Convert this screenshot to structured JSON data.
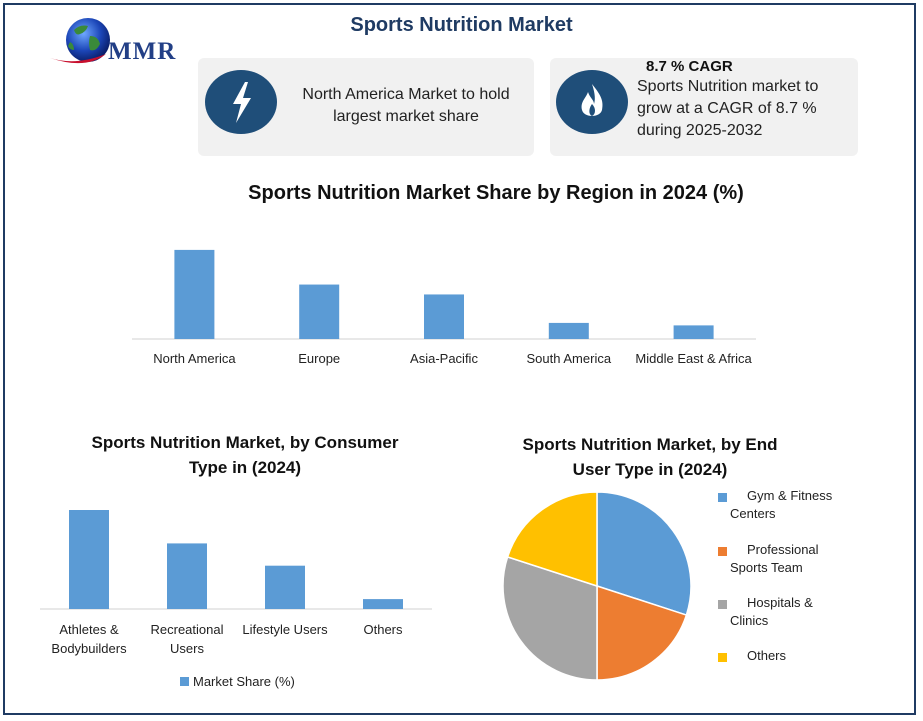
{
  "header": {
    "title": "Sports Nutrition Market",
    "logo_text": "MMR"
  },
  "cards": {
    "region": {
      "text_line1": "North America Market to hold",
      "text_line2": "largest market share"
    },
    "cagr": {
      "heading": "8.7 % CAGR",
      "line1": "Sports Nutrition market to",
      "line2": "grow at a CAGR of 8.7 %",
      "line3": "during 2025-2032"
    }
  },
  "colors": {
    "bar": "#5b9bd5",
    "accent": "#1f4e79",
    "title": "#1f3b63"
  },
  "chart_data": [
    {
      "type": "bar",
      "title": "Sports Nutrition Market Share by Region in 2024 (%)",
      "categories": [
        "North America",
        "Europe",
        "Asia-Pacific",
        "South America",
        "Middle East & Africa"
      ],
      "values": [
        36,
        22,
        18,
        6.5,
        5.5
      ],
      "color": "#5b9bd5",
      "grid": false
    },
    {
      "type": "bar",
      "title_line1": "Sports Nutrition Market, by Consumer",
      "title_line2": "Type in (2024)",
      "categories": [
        {
          "line1": "Athletes &",
          "line2": "Bodybuilders"
        },
        {
          "line1": "Recreational",
          "line2": "Users"
        },
        {
          "line1": "Lifestyle Users",
          "line2": ""
        },
        {
          "line1": "Others",
          "line2": ""
        }
      ],
      "values": [
        40,
        26.5,
        17.5,
        4
      ],
      "series": [
        {
          "name": "Market Share (%)"
        }
      ],
      "color": "#5b9bd5",
      "legend": "bottom",
      "grid": false
    },
    {
      "type": "pie",
      "title_line1": "Sports Nutrition Market, by End",
      "title_line2": "User Type in (2024)",
      "legend": "right",
      "slices": [
        {
          "line1": "Gym & Fitness",
          "line2": "Centers",
          "value": 30,
          "color": "#5b9bd5"
        },
        {
          "line1": "Professional",
          "line2": "Sports Team",
          "value": 20,
          "color": "#ed7d31"
        },
        {
          "line1": "Hospitals &",
          "line2": "Clinics",
          "value": 30,
          "color": "#a5a5a5"
        },
        {
          "line1": "Others",
          "line2": "",
          "value": 20,
          "color": "#ffc000"
        }
      ]
    }
  ]
}
